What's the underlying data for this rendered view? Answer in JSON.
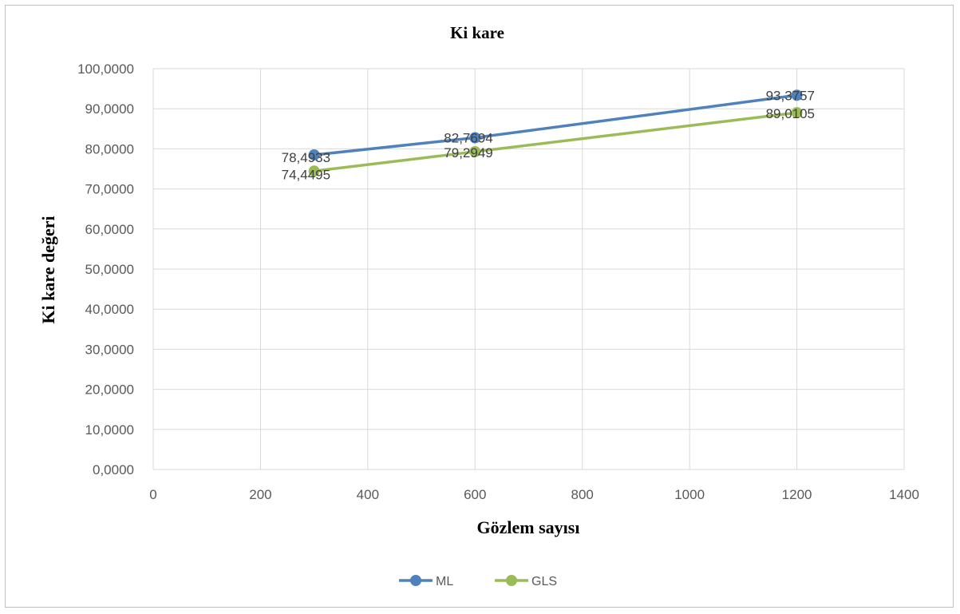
{
  "chart_data": {
    "type": "line",
    "title": "Ki kare",
    "xlabel": "Gözlem sayısı",
    "ylabel": "Ki kare değeri",
    "xlim": [
      0,
      1400
    ],
    "ylim": [
      0,
      100
    ],
    "x_ticks": [
      0,
      200,
      400,
      600,
      800,
      1000,
      1200,
      1400
    ],
    "x_tick_labels": [
      "0",
      "200",
      "400",
      "600",
      "800",
      "1000",
      "1200",
      "1400"
    ],
    "y_ticks": [
      0,
      10,
      20,
      30,
      40,
      50,
      60,
      70,
      80,
      90,
      100
    ],
    "y_tick_labels": [
      "0,0000",
      "10,0000",
      "20,0000",
      "30,0000",
      "40,0000",
      "50,0000",
      "60,0000",
      "70,0000",
      "80,0000",
      "90,0000",
      "100,0000"
    ],
    "grid": true,
    "legend_position": "bottom",
    "series": [
      {
        "name": "ML",
        "color": "#4f81bd",
        "x": [
          300,
          600,
          1200
        ],
        "y": [
          78.4933,
          82.7694,
          93.3757
        ],
        "labels": [
          "78,4933",
          "82,7694",
          "93,3757"
        ]
      },
      {
        "name": "GLS",
        "color": "#9bbb59",
        "x": [
          300,
          600,
          1200
        ],
        "y": [
          74.4495,
          79.2949,
          89.0105
        ],
        "labels": [
          "74,4495",
          "79,2949",
          "89,0105"
        ]
      }
    ]
  }
}
